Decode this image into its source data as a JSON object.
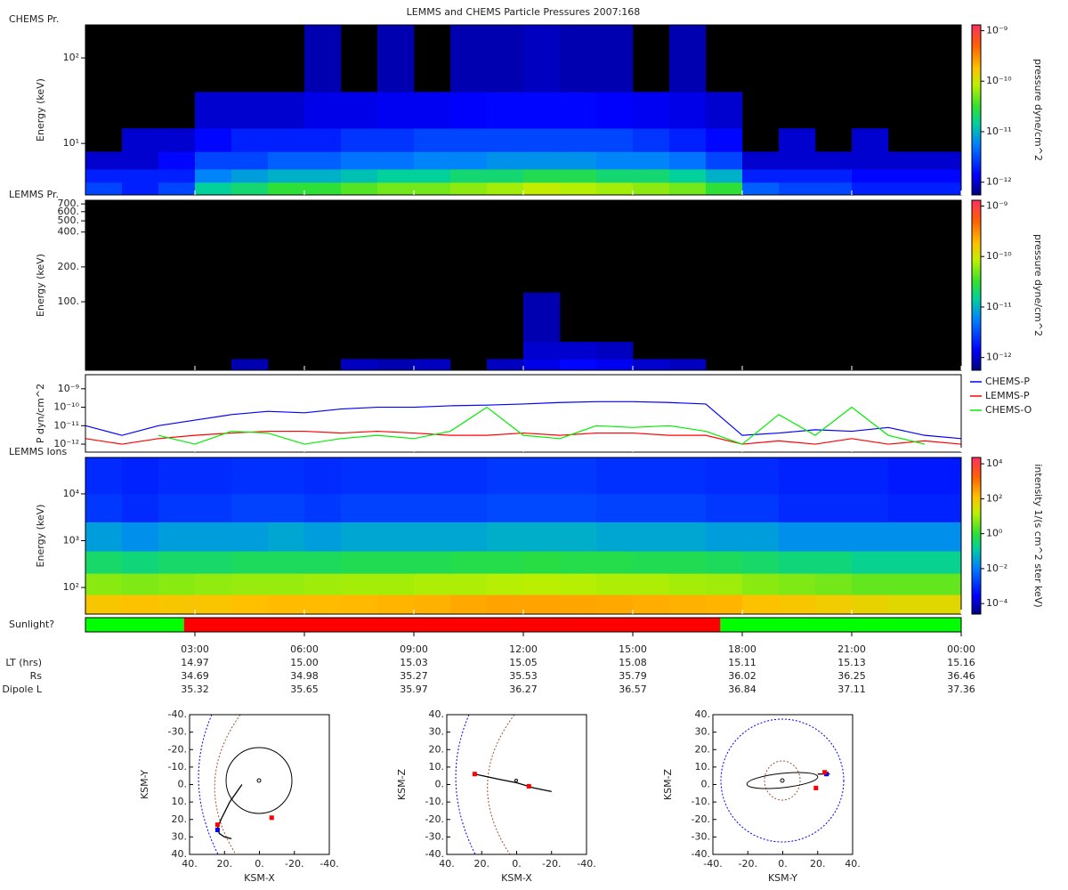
{
  "title": "LEMMS and CHEMS Particle Pressures  2007:168",
  "time_axis": {
    "xlim": [
      0,
      24
    ],
    "xticks": [
      {
        "value": 3,
        "label": "03:00"
      },
      {
        "value": 6,
        "label": "06:00"
      },
      {
        "value": 9,
        "label": "09:00"
      },
      {
        "value": 12,
        "label": "12:00"
      },
      {
        "value": 15,
        "label": "15:00"
      },
      {
        "value": 18,
        "label": "18:00"
      },
      {
        "value": 21,
        "label": "21:00"
      },
      {
        "value": 24,
        "label": "00:00"
      }
    ],
    "rows": [
      {
        "name": "LT (hrs)",
        "values": [
          "14.97",
          "15.00",
          "15.03",
          "15.05",
          "15.08",
          "15.11",
          "15.13",
          "15.16"
        ]
      },
      {
        "name": "Rs",
        "values": [
          "34.69",
          "34.98",
          "35.27",
          "35.53",
          "35.79",
          "36.02",
          "36.25",
          "36.46"
        ]
      },
      {
        "name": "Dipole L",
        "values": [
          "35.32",
          "35.65",
          "35.97",
          "36.27",
          "36.57",
          "36.84",
          "37.11",
          "37.36"
        ]
      }
    ]
  },
  "chart_data": [
    {
      "type": "heatmap",
      "label": "CHEMS Pr.",
      "ylabel": "Energy (keV)",
      "log_y": true,
      "ylim": [
        2.5,
        243
      ],
      "yticks": [
        {
          "value": 10,
          "label": "10¹"
        },
        {
          "value": 100,
          "label": "10²"
        }
      ],
      "zlabel": "pressure dyne/cm^2",
      "zlim": [
        5.6e-13,
        1.3e-09
      ],
      "zticks": [
        {
          "value": 1e-09,
          "label": "10⁻⁹"
        },
        {
          "value": 1e-10,
          "label": "10⁻¹⁰"
        },
        {
          "value": 1e-11,
          "label": "10⁻¹¹"
        },
        {
          "value": 1e-12,
          "label": "10⁻¹²"
        }
      ],
      "x_bins": [
        0,
        1,
        2,
        3,
        4,
        5,
        6,
        7,
        8,
        9,
        10,
        11,
        12,
        13,
        14,
        15,
        16,
        17,
        18,
        19,
        20,
        21,
        22,
        23,
        24
      ],
      "y_bins": [
        2.5,
        3.5,
        5,
        8,
        15,
        40,
        243
      ],
      "z": [
        [
          3e-12,
          2e-12,
          3e-12,
          1.5e-11,
          2e-11,
          3e-11,
          3e-11,
          4e-11,
          5e-11,
          5e-11,
          6e-11,
          7e-11,
          9e-11,
          8e-11,
          7e-11,
          6e-11,
          5e-11,
          3e-11,
          4e-12,
          3e-12,
          3e-12,
          2e-12,
          2e-12,
          2e-12
        ],
        [
          2e-12,
          2e-12,
          2e-12,
          6e-12,
          8e-12,
          1e-11,
          1e-11,
          1.2e-11,
          1.5e-11,
          1.5e-11,
          2e-11,
          2e-11,
          2.5e-11,
          2.5e-11,
          2e-11,
          2e-11,
          1.5e-11,
          1e-11,
          2e-12,
          2e-12,
          2e-12,
          1.5e-12,
          1.5e-12,
          1.5e-12
        ],
        [
          1e-12,
          1e-12,
          1.5e-12,
          3e-12,
          3e-12,
          4e-12,
          4e-12,
          5e-12,
          5e-12,
          6e-12,
          6e-12,
          7e-12,
          7e-12,
          7e-12,
          6e-12,
          6e-12,
          5e-12,
          3e-12,
          1e-12,
          1e-12,
          1e-12,
          1e-12,
          1e-12,
          1e-12
        ],
        [
          null,
          1e-12,
          1e-12,
          1.5e-12,
          2e-12,
          2e-12,
          2e-12,
          2.5e-12,
          2.5e-12,
          3e-12,
          3e-12,
          3e-12,
          3e-12,
          3e-12,
          3e-12,
          2.5e-12,
          2e-12,
          1.5e-12,
          null,
          1e-12,
          null,
          1e-12,
          null,
          null
        ],
        [
          null,
          null,
          null,
          1e-12,
          1e-12,
          1e-12,
          1.2e-12,
          1.2e-12,
          1.3e-12,
          1.3e-12,
          1.4e-12,
          1.5e-12,
          1.5e-12,
          1.5e-12,
          1.4e-12,
          1.3e-12,
          1.2e-12,
          1e-12,
          null,
          null,
          null,
          null,
          null,
          null
        ],
        [
          null,
          null,
          null,
          null,
          null,
          null,
          8e-13,
          null,
          8e-13,
          null,
          8e-13,
          8e-13,
          9e-13,
          8e-13,
          8e-13,
          null,
          8e-13,
          null,
          null,
          null,
          null,
          null,
          null,
          null
        ]
      ]
    },
    {
      "type": "heatmap",
      "label": "LEMMS Pr.",
      "ylabel": "Energy (keV)",
      "log_y": true,
      "ylim": [
        25.6,
        753
      ],
      "yticks": [
        {
          "value": 100,
          "label": "100."
        },
        {
          "value": 200,
          "label": "200."
        },
        {
          "value": 400,
          "label": "400."
        },
        {
          "value": 500,
          "label": "500."
        },
        {
          "value": 600,
          "label": "600."
        },
        {
          "value": 700,
          "label": "700."
        }
      ],
      "zlabel": "pressure dyne/cm^2",
      "zlim": [
        5.6e-13,
        1.3e-09
      ],
      "zticks": [
        {
          "value": 1e-09,
          "label": "10⁻⁹"
        },
        {
          "value": 1e-10,
          "label": "10⁻¹⁰"
        },
        {
          "value": 1e-11,
          "label": "10⁻¹¹"
        },
        {
          "value": 1e-12,
          "label": "10⁻¹²"
        }
      ],
      "x_bins": [
        0,
        1,
        2,
        3,
        4,
        5,
        6,
        7,
        8,
        9,
        10,
        11,
        12,
        13,
        14,
        15,
        16,
        17,
        18,
        19,
        20,
        21,
        22,
        23,
        24
      ],
      "y_bins": [
        25.6,
        32,
        45,
        120
      ],
      "z": [
        [
          null,
          null,
          null,
          null,
          8e-13,
          null,
          null,
          9e-13,
          8e-13,
          9e-13,
          null,
          9e-13,
          1.2e-12,
          1.5e-12,
          1.3e-12,
          1e-12,
          9e-13,
          null,
          null,
          null,
          null,
          null,
          null,
          null
        ],
        [
          null,
          null,
          null,
          null,
          null,
          null,
          null,
          null,
          null,
          null,
          null,
          null,
          1e-12,
          1e-12,
          9e-13,
          null,
          null,
          null,
          null,
          null,
          null,
          null,
          null,
          null
        ],
        [
          null,
          null,
          null,
          null,
          null,
          null,
          null,
          null,
          null,
          null,
          null,
          null,
          8e-13,
          null,
          null,
          null,
          null,
          null,
          null,
          null,
          null,
          null,
          null,
          null
        ]
      ]
    },
    {
      "type": "line",
      "ylabel": "P dyn/cm^2",
      "log_y": true,
      "ylim": [
        3.7e-13,
        5.8e-09
      ],
      "yticks": [
        {
          "value": 1e-09,
          "label": "10⁻⁹"
        },
        {
          "value": 1e-10,
          "label": "10⁻¹⁰"
        },
        {
          "value": 1e-11,
          "label": "10⁻¹¹"
        },
        {
          "value": 1e-12,
          "label": "10⁻¹²"
        }
      ],
      "x": [
        0,
        1,
        2,
        3,
        4,
        5,
        6,
        7,
        8,
        9,
        10,
        11,
        12,
        13,
        14,
        15,
        16,
        17,
        18,
        19,
        20,
        21,
        22,
        23,
        24
      ],
      "series": [
        {
          "name": "CHEMS-P",
          "color": "#0000ff",
          "values": [
            1e-11,
            3e-12,
            1e-11,
            2e-11,
            4e-11,
            6e-11,
            5e-11,
            8e-11,
            1e-10,
            1e-10,
            1.2e-10,
            1.3e-10,
            1.5e-10,
            1.8e-10,
            2e-10,
            2e-10,
            1.8e-10,
            1.5e-10,
            3e-12,
            4e-12,
            6e-12,
            5e-12,
            8e-12,
            3e-12,
            2e-12
          ]
        },
        {
          "name": "LEMMS-P",
          "color": "#ff0000",
          "values": [
            2e-12,
            1e-12,
            2e-12,
            3e-12,
            4e-12,
            5e-12,
            5e-12,
            4e-12,
            5e-12,
            4e-12,
            3e-12,
            3e-12,
            4e-12,
            3e-12,
            4e-12,
            4e-12,
            3e-12,
            3e-12,
            1e-12,
            1.5e-12,
            1e-12,
            2e-12,
            1e-12,
            1.5e-12,
            1e-12
          ]
        },
        {
          "name": "CHEMS-O",
          "color": "#00ee00",
          "values": [
            null,
            null,
            3e-12,
            1e-12,
            5e-12,
            4e-12,
            1e-12,
            2e-12,
            3e-12,
            2e-12,
            5e-12,
            1e-10,
            3e-12,
            2e-12,
            1e-11,
            8e-12,
            1e-11,
            5e-12,
            1e-12,
            4e-11,
            3e-12,
            1e-10,
            3e-12,
            1e-12,
            null
          ]
        }
      ]
    },
    {
      "type": "heatmap",
      "label": "LEMMS Ions",
      "ylabel": "Energy (keV)",
      "log_y": true,
      "ylim": [
        27,
        60000
      ],
      "yticks": [
        {
          "value": 100,
          "label": "10²"
        },
        {
          "value": 1000,
          "label": "10³"
        },
        {
          "value": 10000,
          "label": "10⁴"
        }
      ],
      "zlabel": "intensity 1/(s cm^2 ster keV)",
      "zlim": [
        2.5e-05,
        23000
      ],
      "zticks": [
        {
          "value": 10000,
          "label": "10⁴"
        },
        {
          "value": 100,
          "label": "10²"
        },
        {
          "value": 1,
          "label": "10⁰"
        },
        {
          "value": 0.01,
          "label": "10⁻²"
        },
        {
          "value": 0.0001,
          "label": "10⁻⁴"
        }
      ],
      "x_bins": [
        0,
        1,
        2,
        3,
        4,
        5,
        6,
        7,
        8,
        9,
        10,
        11,
        12,
        13,
        14,
        15,
        16,
        17,
        18,
        19,
        20,
        21,
        22,
        23,
        24
      ],
      "y_bins": [
        27,
        70,
        200,
        600,
        2500,
        10000,
        60000
      ],
      "z": [
        [
          100,
          120,
          100,
          110,
          130,
          150,
          150,
          160,
          180,
          200,
          250,
          300,
          300,
          280,
          250,
          220,
          200,
          180,
          120,
          100,
          80,
          60,
          50,
          50
        ],
        [
          6,
          5,
          6,
          7,
          8,
          8,
          9,
          10,
          10,
          12,
          12,
          14,
          15,
          14,
          12,
          12,
          10,
          9,
          6,
          5,
          4,
          3,
          3,
          3
        ],
        [
          0.4,
          0.3,
          0.4,
          0.4,
          0.5,
          0.5,
          0.5,
          0.6,
          0.6,
          0.6,
          0.7,
          0.7,
          0.8,
          0.7,
          0.7,
          0.6,
          0.6,
          0.5,
          0.4,
          0.3,
          0.3,
          0.2,
          0.2,
          0.2
        ],
        [
          0.03,
          0.02,
          0.03,
          0.03,
          0.03,
          0.04,
          0.03,
          0.04,
          0.04,
          0.04,
          0.04,
          0.05,
          0.05,
          0.05,
          0.04,
          0.04,
          0.04,
          0.03,
          0.03,
          0.02,
          0.02,
          0.02,
          0.02,
          0.02
        ],
        [
          0.0015,
          0.001,
          0.0015,
          0.0015,
          0.002,
          0.002,
          0.0015,
          0.002,
          0.002,
          0.002,
          0.002,
          0.0025,
          0.0025,
          0.0025,
          0.002,
          0.002,
          0.002,
          0.0015,
          0.0015,
          0.001,
          0.001,
          0.001,
          0.0008,
          0.0008
        ],
        [
          0.001,
          0.0008,
          0.001,
          0.001,
          0.0012,
          0.0012,
          0.001,
          0.0012,
          0.0012,
          0.0012,
          0.0012,
          0.0015,
          0.0015,
          0.0015,
          0.0012,
          0.0012,
          0.0012,
          0.001,
          0.001,
          0.0008,
          0.0008,
          0.0008,
          0.0006,
          0.0006
        ]
      ]
    },
    {
      "type": "state",
      "label": "Sunlight?",
      "x_edges": [
        0,
        2.7,
        17.4,
        24
      ],
      "colors": [
        "#00ff00",
        "#ff0000",
        "#00ff00"
      ]
    },
    {
      "type": "orbit",
      "xlabel": "KSM-X",
      "ylabel": "KSM-Y",
      "xlim": [
        40,
        -40
      ],
      "ylim": [
        40,
        -40
      ],
      "xticks": [
        {
          "value": 40,
          "label": "40."
        },
        {
          "value": 20,
          "label": "20."
        },
        {
          "value": 0,
          "label": "0."
        },
        {
          "value": -20,
          "label": "-20."
        },
        {
          "value": -40,
          "label": "-40."
        }
      ],
      "yticks": [
        {
          "value": -40,
          "label": "-40."
        },
        {
          "value": -30,
          "label": "-30."
        },
        {
          "value": -20,
          "label": "-20."
        },
        {
          "value": -10,
          "label": "-10."
        },
        {
          "value": 0,
          "label": "0."
        },
        {
          "value": 10,
          "label": "10."
        },
        {
          "value": 20,
          "label": "20."
        },
        {
          "value": 30,
          "label": "30."
        },
        {
          "value": 40,
          "label": "40."
        }
      ],
      "path": {
        "x": [
          16,
          20,
          23,
          24,
          22,
          17,
          10
        ],
        "y": [
          31,
          30,
          28,
          25,
          20,
          10,
          0
        ]
      },
      "markers": [
        {
          "x": 24,
          "y": 26,
          "color": "#0000ff"
        },
        {
          "x": 24,
          "y": 23,
          "color": "#ff0000"
        },
        {
          "x": -7,
          "y": 19,
          "color": "#ff0000"
        }
      ]
    },
    {
      "type": "orbit",
      "xlabel": "KSM-X",
      "ylabel": "KSM-Z",
      "xlim": [
        40,
        -40
      ],
      "ylim": [
        -40,
        40
      ],
      "xticks": [
        {
          "value": 40,
          "label": "40."
        },
        {
          "value": 20,
          "label": "20."
        },
        {
          "value": 0,
          "label": "0."
        },
        {
          "value": -20,
          "label": "-20."
        },
        {
          "value": -40,
          "label": "-40."
        }
      ],
      "yticks": [
        {
          "value": -40,
          "label": "-40."
        },
        {
          "value": -30,
          "label": "-30."
        },
        {
          "value": -20,
          "label": "-20."
        },
        {
          "value": -10,
          "label": "-10."
        },
        {
          "value": 0,
          "label": "0."
        },
        {
          "value": 10,
          "label": "10."
        },
        {
          "value": 20,
          "label": "20."
        },
        {
          "value": 30,
          "label": "30."
        },
        {
          "value": 40,
          "label": "40."
        }
      ],
      "path": {
        "x": [
          24,
          10,
          0,
          -10,
          -20
        ],
        "y": [
          6,
          3,
          1,
          -2,
          -4
        ]
      },
      "markers": [
        {
          "x": 24,
          "y": 6,
          "color": "#ff0000"
        },
        {
          "x": -7,
          "y": -1,
          "color": "#ff0000"
        }
      ]
    },
    {
      "type": "orbit",
      "xlabel": "KSM-Y",
      "ylabel": "KSM-Z",
      "xlim": [
        -40,
        40
      ],
      "ylim": [
        -40,
        40
      ],
      "xticks": [
        {
          "value": -40,
          "label": "-40."
        },
        {
          "value": -20,
          "label": "-20."
        },
        {
          "value": 0,
          "label": "0."
        },
        {
          "value": 20,
          "label": "20."
        },
        {
          "value": 40,
          "label": "40."
        }
      ],
      "yticks": [
        {
          "value": -40,
          "label": "-40."
        },
        {
          "value": -30,
          "label": "-30."
        },
        {
          "value": -20,
          "label": "-20."
        },
        {
          "value": -10,
          "label": "-10."
        },
        {
          "value": 0,
          "label": "0."
        },
        {
          "value": 10,
          "label": "10."
        },
        {
          "value": 20,
          "label": "20."
        },
        {
          "value": 30,
          "label": "30."
        },
        {
          "value": 40,
          "label": "40."
        }
      ],
      "path": {
        "x": [
          20,
          23,
          25,
          27
        ],
        "y": [
          6,
          6,
          6,
          6
        ]
      },
      "markers": [
        {
          "x": 25,
          "y": 6,
          "color": "#0000ff"
        },
        {
          "x": 24,
          "y": 7,
          "color": "#ff0000"
        },
        {
          "x": 19,
          "y": -2,
          "color": "#ff0000"
        }
      ]
    }
  ]
}
